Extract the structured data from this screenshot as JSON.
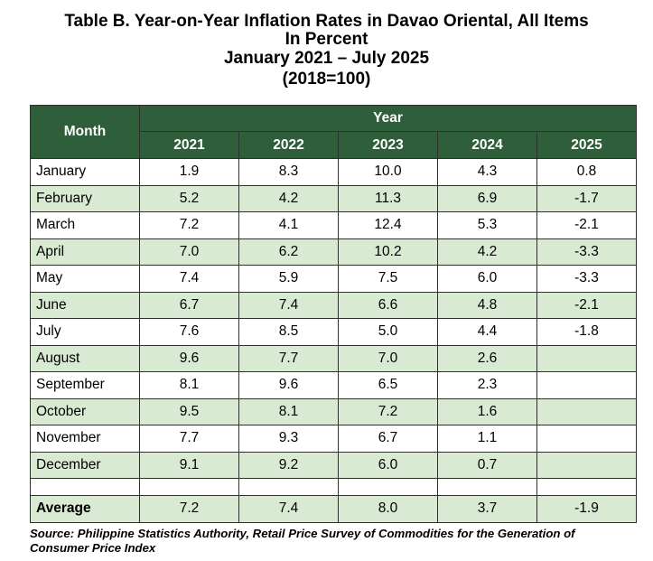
{
  "title": {
    "line1": "Table B. Year-on-Year Inflation Rates in Davao Oriental, All Items",
    "line2": "In Percent",
    "line3": "January 2021 – July 2025",
    "line4": "(2018=100)"
  },
  "table": {
    "month_header": "Month",
    "year_header": "Year",
    "years": [
      "2021",
      "2022",
      "2023",
      "2024",
      "2025"
    ],
    "rows": [
      {
        "month": "January",
        "values": [
          "1.9",
          "8.3",
          "10.0",
          "4.3",
          "0.8"
        ]
      },
      {
        "month": "February",
        "values": [
          "5.2",
          "4.2",
          "11.3",
          "6.9",
          "-1.7"
        ]
      },
      {
        "month": "March",
        "values": [
          "7.2",
          "4.1",
          "12.4",
          "5.3",
          "-2.1"
        ]
      },
      {
        "month": "April",
        "values": [
          "7.0",
          "6.2",
          "10.2",
          "4.2",
          "-3.3"
        ]
      },
      {
        "month": "May",
        "values": [
          "7.4",
          "5.9",
          "7.5",
          "6.0",
          "-3.3"
        ]
      },
      {
        "month": "June",
        "values": [
          "6.7",
          "7.4",
          "6.6",
          "4.8",
          "-2.1"
        ]
      },
      {
        "month": "July",
        "values": [
          "7.6",
          "8.5",
          "5.0",
          "4.4",
          "-1.8"
        ]
      },
      {
        "month": "August",
        "values": [
          "9.6",
          "7.7",
          "7.0",
          "2.6",
          ""
        ]
      },
      {
        "month": "September",
        "values": [
          "8.1",
          "9.6",
          "6.5",
          "2.3",
          ""
        ]
      },
      {
        "month": "October",
        "values": [
          "9.5",
          "8.1",
          "7.2",
          "1.6",
          ""
        ]
      },
      {
        "month": "November",
        "values": [
          "7.7",
          "9.3",
          "6.7",
          "1.1",
          ""
        ]
      },
      {
        "month": "December",
        "values": [
          "9.1",
          "9.2",
          "6.0",
          "0.7",
          ""
        ]
      }
    ],
    "average": {
      "label": "Average",
      "values": [
        "7.2",
        "7.4",
        "8.0",
        "3.7",
        "-1.9"
      ]
    }
  },
  "source": "Source: Philippine Statistics Authority, Retail Price Survey of Commodities for the Generation of Consumer Price Index",
  "colors": {
    "header_bg": "#2e5f3a",
    "alt_row_bg": "#d9ead3"
  }
}
